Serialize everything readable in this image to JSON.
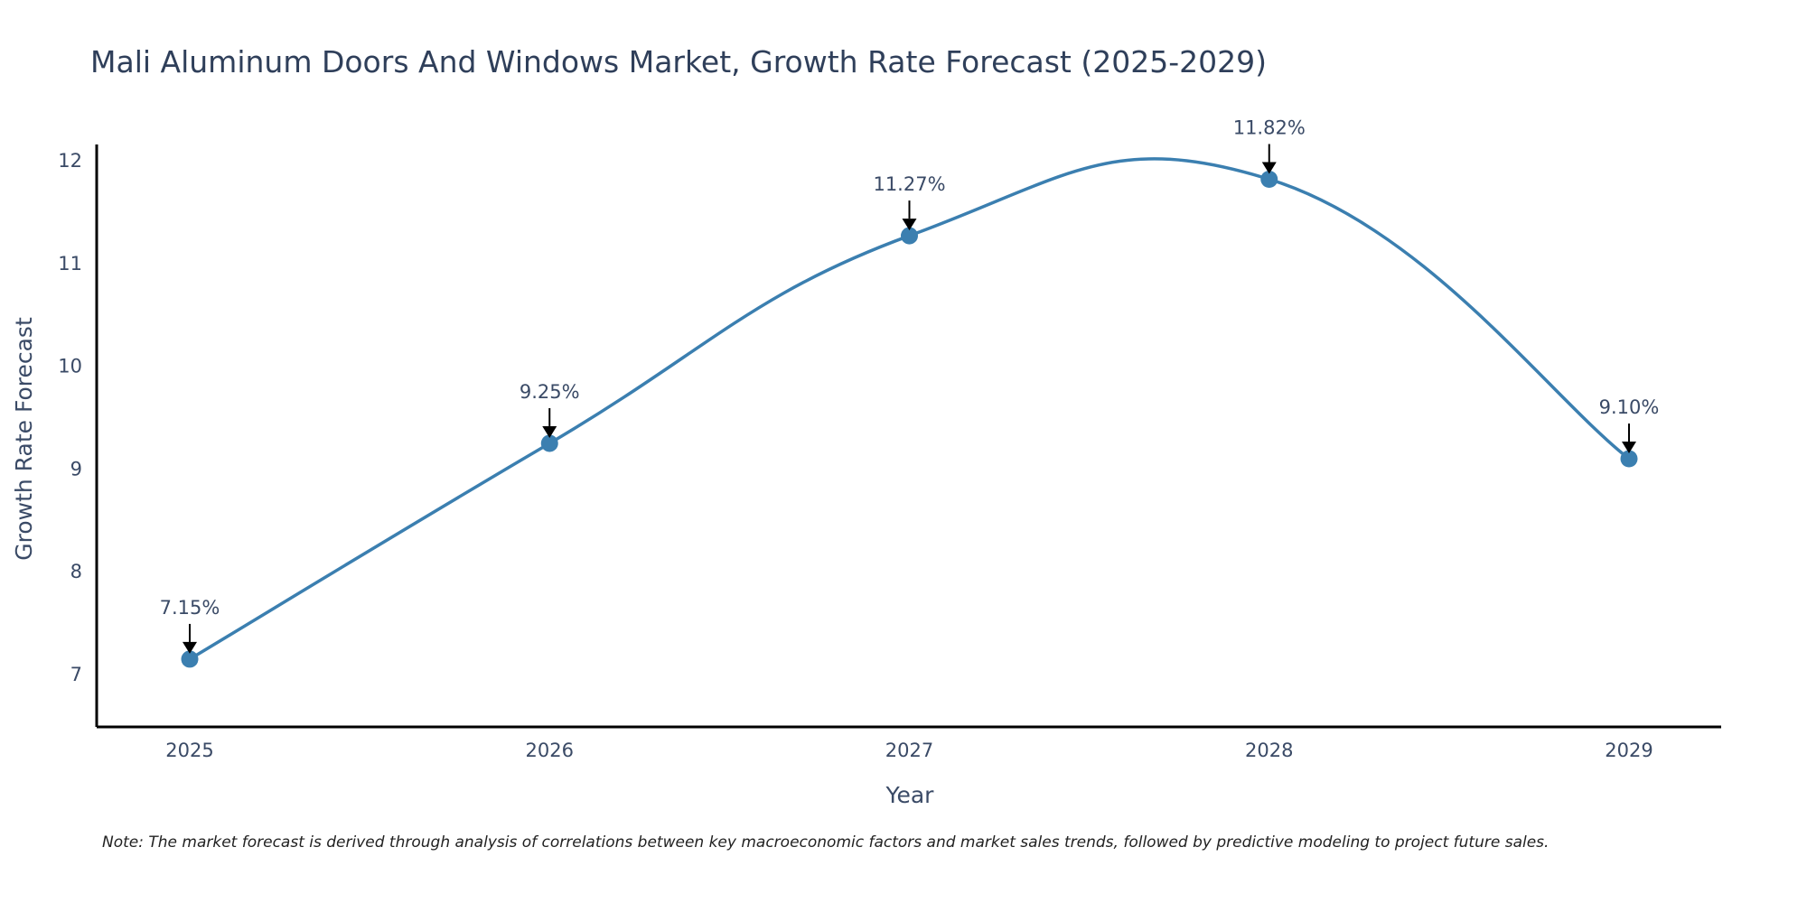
{
  "chart_data": {
    "type": "line",
    "title": "Mali Aluminum Doors And Windows Market, Growth Rate Forecast (2025-2029)",
    "xlabel": "Year",
    "ylabel": "Growth Rate Forecast",
    "categories": [
      "2025",
      "2026",
      "2027",
      "2028",
      "2029"
    ],
    "values": [
      7.15,
      9.25,
      11.27,
      11.82,
      9.1
    ],
    "data_labels": [
      "7.15%",
      "9.25%",
      "11.27%",
      "11.82%",
      "9.10%"
    ],
    "y_ticks": [
      7,
      8,
      9,
      10,
      11,
      12
    ],
    "ylim": [
      6.62,
      12.3
    ],
    "grid": false,
    "legend": "none",
    "smoothing": "spline",
    "series_color": "#3b7fb0",
    "marker_color": "#3b7fb0",
    "arrow_color": "#000000"
  },
  "note": "Note: The market forecast is derived through analysis of correlations between key macroeconomic factors and market sales trends, followed by predictive modeling to project future sales."
}
